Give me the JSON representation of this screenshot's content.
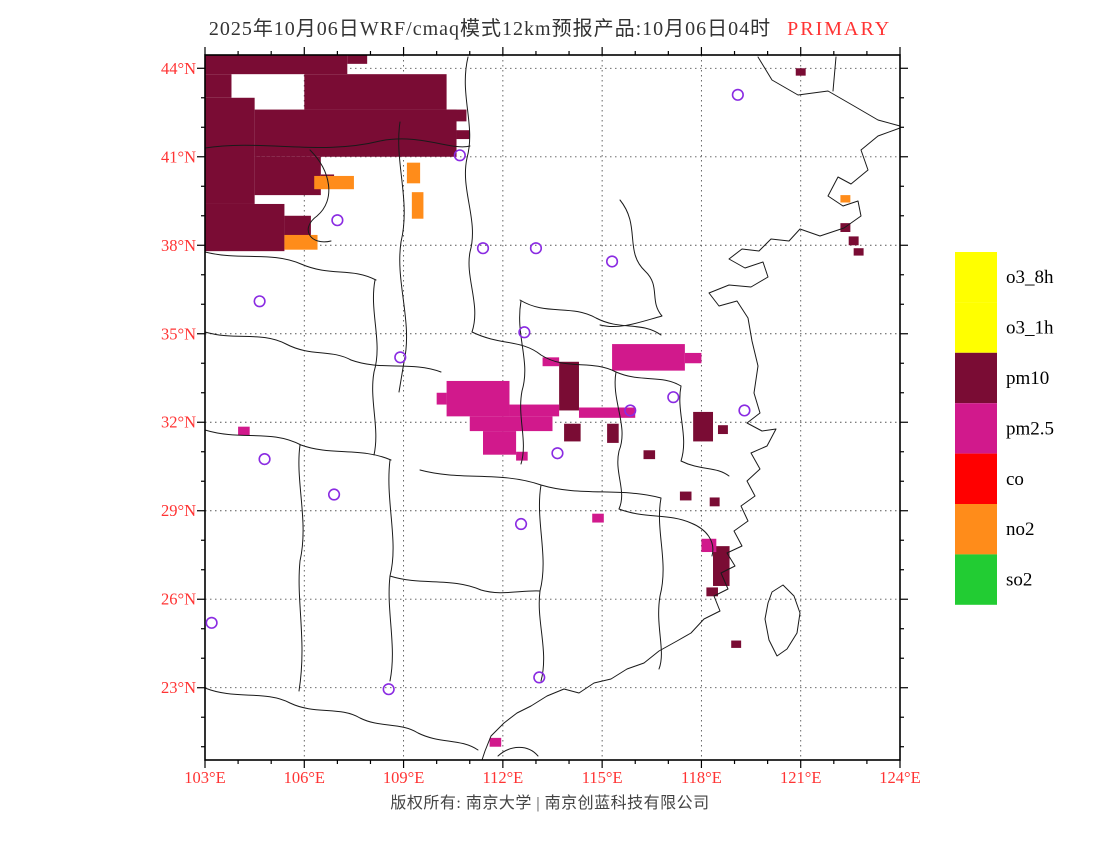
{
  "title": {
    "text": "2025年10月06日WRF/cmaq模式12km预报产品:10月06日04时",
    "highlight": "PRIMARY"
  },
  "footer": {
    "copyright": "版权所有: 南京大学 | 南京创蓝科技有限公司"
  },
  "legend": {
    "items": [
      {
        "label": "o3_8h",
        "color": "#FFFF00"
      },
      {
        "label": "o3_1h",
        "color": "#FFFF00"
      },
      {
        "label": "pm10",
        "color": "#7A0C34"
      },
      {
        "label": "pm2.5",
        "color": "#D1198C"
      },
      {
        "label": "co",
        "color": "#FF0000"
      },
      {
        "label": "no2",
        "color": "#FF8C1A"
      },
      {
        "label": "so2",
        "color": "#22CC33"
      }
    ]
  },
  "axes": {
    "label_color": "#FF3333",
    "lat_ticks": [
      {
        "label": "44°N",
        "value": 44
      },
      {
        "label": "41°N",
        "value": 41
      },
      {
        "label": "38°N",
        "value": 38
      },
      {
        "label": "35°N",
        "value": 35
      },
      {
        "label": "32°N",
        "value": 32
      },
      {
        "label": "29°N",
        "value": 29
      },
      {
        "label": "26°N",
        "value": 26
      },
      {
        "label": "23°N",
        "value": 23
      }
    ],
    "lon_ticks": [
      {
        "label": "103°E",
        "value": 103
      },
      {
        "label": "106°E",
        "value": 106
      },
      {
        "label": "109°E",
        "value": 109
      },
      {
        "label": "112°E",
        "value": 112
      },
      {
        "label": "115°E",
        "value": 115
      },
      {
        "label": "118°E",
        "value": 118
      },
      {
        "label": "121°E",
        "value": 121
      },
      {
        "label": "124°E",
        "value": 124
      }
    ]
  },
  "map_data": {
    "type": "map",
    "lon_range": [
      103,
      124
    ],
    "lat_range": [
      23,
      44
    ],
    "grid_interval_deg": 3,
    "marker_color": "#8A2BE2",
    "regions": [
      {
        "pollutant": "pm10",
        "rects": [
          [
            103,
            44.45,
            107.3,
            43.8
          ],
          [
            103,
            43.8,
            103.8,
            43.0
          ],
          [
            106.0,
            43.8,
            110.3,
            42.6
          ],
          [
            104.5,
            42.6,
            110.6,
            41.0
          ],
          [
            103,
            43.0,
            104.5,
            39.4
          ],
          [
            104.5,
            41.0,
            106.5,
            39.7
          ],
          [
            103,
            39.4,
            105.4,
            37.8
          ],
          [
            105.4,
            39.0,
            106.2,
            38.3
          ],
          [
            110.6,
            41.9,
            111.0,
            41.6
          ],
          [
            107.3,
            44.45,
            107.9,
            44.15
          ],
          [
            110.3,
            42.6,
            110.9,
            42.2
          ],
          [
            106.5,
            40.4,
            106.9,
            40.05
          ],
          [
            113.7,
            34.05,
            114.3,
            32.4
          ],
          [
            113.85,
            31.95,
            114.35,
            31.35
          ],
          [
            115.15,
            31.95,
            115.5,
            31.3
          ],
          [
            116.25,
            31.05,
            116.6,
            30.75
          ],
          [
            117.75,
            32.35,
            118.35,
            31.35
          ],
          [
            118.5,
            31.9,
            118.8,
            31.6
          ],
          [
            117.35,
            29.65,
            117.7,
            29.35
          ],
          [
            118.25,
            29.45,
            118.55,
            29.15
          ],
          [
            118.35,
            27.8,
            118.85,
            26.45
          ],
          [
            118.15,
            26.4,
            118.5,
            26.1
          ],
          [
            122.2,
            38.75,
            122.5,
            38.45
          ],
          [
            122.45,
            38.3,
            122.75,
            38.0
          ],
          [
            122.6,
            37.9,
            122.9,
            37.65
          ],
          [
            120.85,
            44.0,
            121.15,
            43.75
          ],
          [
            118.9,
            24.6,
            119.2,
            24.35
          ]
        ]
      },
      {
        "pollutant": "pm2.5",
        "rects": [
          [
            110.3,
            33.4,
            112.2,
            32.2
          ],
          [
            111.0,
            32.2,
            113.5,
            31.7
          ],
          [
            111.4,
            31.7,
            112.4,
            30.9
          ],
          [
            112.2,
            32.6,
            113.7,
            32.2
          ],
          [
            114.3,
            32.5,
            116.0,
            32.15
          ],
          [
            115.3,
            34.65,
            117.5,
            33.75
          ],
          [
            117.5,
            34.35,
            118.0,
            34.0
          ],
          [
            113.2,
            34.2,
            113.7,
            33.9
          ],
          [
            110.0,
            33.0,
            110.3,
            32.6
          ],
          [
            112.4,
            31.0,
            112.75,
            30.7
          ],
          [
            104.0,
            31.85,
            104.35,
            31.55
          ],
          [
            114.7,
            28.9,
            115.05,
            28.6
          ],
          [
            118.0,
            28.05,
            118.45,
            27.6
          ],
          [
            111.6,
            21.3,
            111.95,
            21.0
          ]
        ]
      },
      {
        "pollutant": "no2",
        "rects": [
          [
            106.3,
            40.35,
            107.5,
            39.9
          ],
          [
            109.1,
            40.8,
            109.5,
            40.1
          ],
          [
            109.25,
            39.8,
            109.6,
            38.9
          ],
          [
            105.4,
            38.35,
            106.4,
            37.85
          ],
          [
            122.2,
            39.7,
            122.5,
            39.45
          ]
        ]
      }
    ],
    "city_markers": [
      [
        119.1,
        43.1
      ],
      [
        110.7,
        41.05
      ],
      [
        107.0,
        38.85
      ],
      [
        111.4,
        37.9
      ],
      [
        113.0,
        37.9
      ],
      [
        115.3,
        37.45
      ],
      [
        104.65,
        36.1
      ],
      [
        112.65,
        35.05
      ],
      [
        108.9,
        34.2
      ],
      [
        117.15,
        32.85
      ],
      [
        115.85,
        32.4
      ],
      [
        119.3,
        32.4
      ],
      [
        113.65,
        30.95
      ],
      [
        104.8,
        30.75
      ],
      [
        106.9,
        29.55
      ],
      [
        112.55,
        28.55
      ],
      [
        103.2,
        25.2
      ],
      [
        108.55,
        22.95
      ],
      [
        113.1,
        23.35
      ]
    ]
  }
}
